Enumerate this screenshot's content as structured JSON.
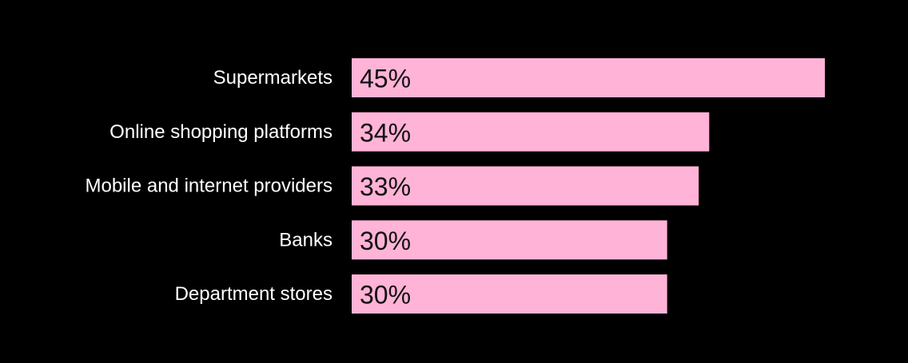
{
  "colors": {
    "background": "#000000",
    "bar": "#ffb3d7",
    "category_label": "#ffffff",
    "value_label": "#111111"
  },
  "chart_data": {
    "type": "bar",
    "orientation": "horizontal",
    "categories": [
      "Supermarkets",
      "Online shopping platforms",
      "Mobile and internet providers",
      "Banks",
      "Department stores"
    ],
    "values": [
      45,
      34,
      33,
      30,
      30
    ],
    "value_labels": [
      "45%",
      "34%",
      "33%",
      "30%",
      "30%"
    ],
    "unit": "%",
    "xlim": [
      0,
      45
    ],
    "grid": false,
    "legend": "none"
  }
}
